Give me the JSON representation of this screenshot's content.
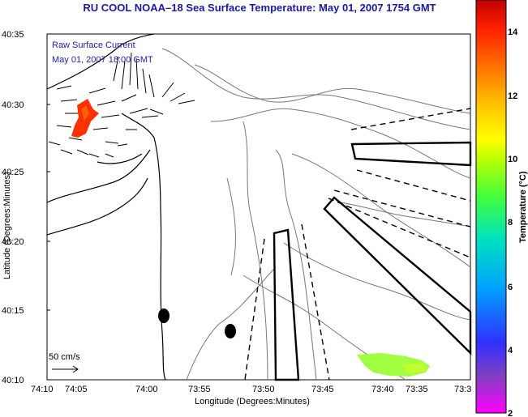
{
  "title": "RU COOL  NOAA–18  Sea Surface Temperature:  May 01, 2007 1754 GMT",
  "legend": {
    "line1": "Raw Surface Current",
    "line2": "May 01, 2007 18:00 GMT",
    "scale_label": "50 cm/s"
  },
  "axes": {
    "xlabel": "Longitude (Degrees:Minutes)",
    "ylabel": "Latitude (Degrees:Minutes)",
    "x_ticks": [
      "74:10",
      "74:05",
      "74:00",
      "73:55",
      "73:50",
      "73:45",
      "73:40",
      "73:35",
      "73:3"
    ],
    "y_ticks": [
      "40:35",
      "40:30",
      "40:25",
      "40:20",
      "40:15",
      "40:10"
    ]
  },
  "colorbar": {
    "label": "Temperature (°C)",
    "ticks": [
      "14",
      "12",
      "10",
      "8",
      "6",
      "4",
      "2"
    ],
    "colors": [
      "#ff00ff",
      "#8040c0",
      "#3030ff",
      "#00a0ff",
      "#00e0c0",
      "#40ff40",
      "#c0ff00",
      "#ffff00",
      "#ffc000",
      "#ff7000",
      "#ff2000",
      "#c00000"
    ]
  },
  "map": {
    "land_color": "#ffffff",
    "sst_hot_color": "#ff3000",
    "sst_cool_color": "#a0ff40",
    "buoy_color": "#000000"
  }
}
